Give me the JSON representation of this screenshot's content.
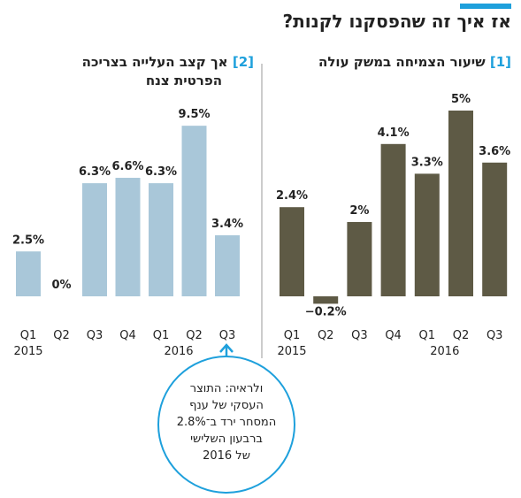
{
  "title": "אז איך זה שהפסקנו לקנות?",
  "chart_data": [
    {
      "type": "bar",
      "number": "[1]",
      "title_lines": [
        "שיעור הצמיחה במשק עולה"
      ],
      "categories": [
        "Q1",
        "Q2",
        "Q3",
        "Q4",
        "Q1",
        "Q2",
        "Q3"
      ],
      "x_group_labels": [
        "2015",
        null,
        null,
        null,
        "2016",
        null,
        null
      ],
      "values": [
        2.4,
        -0.2,
        2,
        4.1,
        3.3,
        5,
        3.6
      ],
      "value_labels": [
        "2.4%",
        "−0.2%",
        "2%",
        "4.1%",
        "3.3%",
        "5%",
        "3.6%"
      ],
      "color": "#5e5a45",
      "ylim": [
        -0.5,
        5.5
      ]
    },
    {
      "type": "bar",
      "number": "[2]",
      "title_lines": [
        "אך קצב העלייה בצריכה",
        "הפרטית  צנח"
      ],
      "categories": [
        "Q1",
        "Q2",
        "Q3",
        "Q4",
        "Q1",
        "Q2",
        "Q3"
      ],
      "x_group_labels": [
        "2015",
        null,
        null,
        null,
        "2016",
        null,
        null
      ],
      "values": [
        2.5,
        0,
        6.3,
        6.6,
        6.3,
        9.5,
        3.4
      ],
      "value_labels": [
        "2.5%",
        "0%",
        "6.3%",
        "6.6%",
        "6.3%",
        "9.5%",
        "3.4%"
      ],
      "color": "#a9c7d9",
      "ylim": [
        0,
        10
      ]
    }
  ],
  "annotation": {
    "lines": [
      "ולראיה: התוצר",
      "העסקי של ענף",
      "המסחר ירד ב־2.8%",
      "ברבעון השלישי",
      "של 2016"
    ]
  }
}
